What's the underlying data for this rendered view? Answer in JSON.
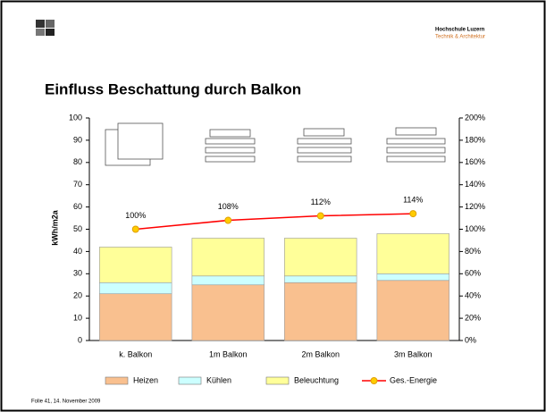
{
  "header": {
    "institution": "Hochschule Luzern",
    "department": "Technik & Architektur"
  },
  "footer": "Folie   41, 14. November 2009",
  "chart_data": {
    "type": "bar",
    "stacked": true,
    "title": "Einfluss Beschattung durch Balkon",
    "ylabel": "kWh/m2a",
    "categories": [
      "k. Balkon",
      "1m Balkon",
      "2m Balkon",
      "3m Balkon"
    ],
    "series": [
      {
        "name": "Heizen",
        "color": "#f9c08f",
        "values": [
          21,
          25,
          26,
          27
        ]
      },
      {
        "name": "Kühlen",
        "color": "#ccffff",
        "values": [
          5,
          4,
          3,
          3
        ]
      },
      {
        "name": "Beleuchtung",
        "color": "#ffff99",
        "values": [
          16,
          17,
          17,
          18
        ]
      },
      {
        "name": "Ges.-Energie",
        "type": "line",
        "axis": "y2",
        "color": "#ff0000",
        "marker_color": "#ffcc00",
        "values": [
          100,
          108,
          112,
          114
        ],
        "value_labels": [
          "100%",
          "108%",
          "112%",
          "114%"
        ]
      }
    ],
    "ylim": [
      0,
      100
    ],
    "yticks": [
      0,
      10,
      20,
      30,
      40,
      50,
      60,
      70,
      80,
      90,
      100
    ],
    "y2lim": [
      0,
      200
    ],
    "y2ticks": [
      {
        "value": 0,
        "label": "0%"
      },
      {
        "value": 20,
        "label": "20%"
      },
      {
        "value": 40,
        "label": "40%"
      },
      {
        "value": 60,
        "label": "60%"
      },
      {
        "value": 80,
        "label": "80%"
      },
      {
        "value": 100,
        "label": "100%"
      },
      {
        "value": 120,
        "label": "120%"
      },
      {
        "value": 140,
        "label": "140%"
      },
      {
        "value": 160,
        "label": "160%"
      },
      {
        "value": 180,
        "label": "180%"
      },
      {
        "value": 200,
        "label": "200%"
      }
    ],
    "legend": "bottom"
  }
}
